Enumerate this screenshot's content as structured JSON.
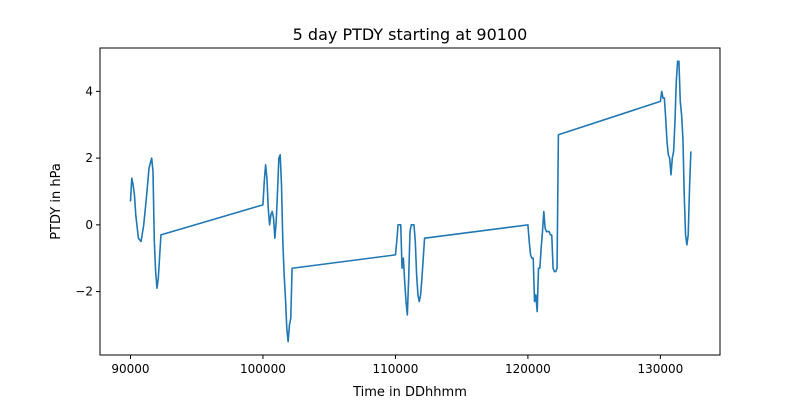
{
  "chart_data": {
    "type": "line",
    "title": "5 day PTDY starting at 90100",
    "xlabel": "Time in DDhhmm",
    "ylabel": "PTDY in hPa",
    "xlim": [
      87700,
      134500
    ],
    "ylim": [
      -3.9,
      5.3
    ],
    "x_ticks": [
      90000,
      100000,
      110000,
      120000,
      130000
    ],
    "y_ticks": [
      -2,
      0,
      2,
      4
    ],
    "x_tick_labels": [
      "90000",
      "100000",
      "110000",
      "120000",
      "130000"
    ],
    "y_tick_labels": [
      "−2",
      "0",
      "2",
      "4"
    ],
    "grid": false,
    "legend": "none",
    "series": [
      {
        "color": "#1f77b4",
        "points": [
          [
            90000,
            0.7
          ],
          [
            90100,
            1.4
          ],
          [
            90200,
            1.2
          ],
          [
            90300,
            0.9
          ],
          [
            90400,
            0.3
          ],
          [
            90600,
            -0.4
          ],
          [
            90800,
            -0.5
          ],
          [
            91000,
            0.0
          ],
          [
            91200,
            0.8
          ],
          [
            91400,
            1.7
          ],
          [
            91600,
            2.0
          ],
          [
            91700,
            1.6
          ],
          [
            91800,
            -0.5
          ],
          [
            91900,
            -1.4
          ],
          [
            92000,
            -1.9
          ],
          [
            92100,
            -1.6
          ],
          [
            92300,
            -0.3
          ],
          [
            100000,
            0.6
          ],
          [
            100100,
            1.3
          ],
          [
            100200,
            1.8
          ],
          [
            100300,
            1.4
          ],
          [
            100400,
            0.5
          ],
          [
            100500,
            0.0
          ],
          [
            100600,
            0.3
          ],
          [
            100700,
            0.4
          ],
          [
            100800,
            0.2
          ],
          [
            100900,
            -0.4
          ],
          [
            101000,
            0.1
          ],
          [
            101100,
            1.0
          ],
          [
            101200,
            2.0
          ],
          [
            101300,
            2.1
          ],
          [
            101400,
            1.2
          ],
          [
            101500,
            -0.5
          ],
          [
            101600,
            -1.5
          ],
          [
            101700,
            -2.2
          ],
          [
            101800,
            -3.1
          ],
          [
            101900,
            -3.5
          ],
          [
            102000,
            -3.0
          ],
          [
            102100,
            -2.8
          ],
          [
            102200,
            -1.3
          ],
          [
            110000,
            -0.9
          ],
          [
            110100,
            -0.5
          ],
          [
            110200,
            0.0
          ],
          [
            110300,
            0.0
          ],
          [
            110400,
            0.0
          ],
          [
            110500,
            -1.3
          ],
          [
            110600,
            -1.0
          ],
          [
            110700,
            -1.7
          ],
          [
            110800,
            -2.3
          ],
          [
            110900,
            -2.7
          ],
          [
            111000,
            -1.6
          ],
          [
            111100,
            -0.2
          ],
          [
            111200,
            0.0
          ],
          [
            111300,
            0.0
          ],
          [
            111400,
            0.0
          ],
          [
            111500,
            -0.5
          ],
          [
            111600,
            -1.5
          ],
          [
            111700,
            -2.1
          ],
          [
            111800,
            -2.3
          ],
          [
            111900,
            -2.1
          ],
          [
            112000,
            -1.6
          ],
          [
            112200,
            -0.4
          ],
          [
            120000,
            0.0
          ],
          [
            120100,
            -0.5
          ],
          [
            120200,
            -0.9
          ],
          [
            120300,
            -1.0
          ],
          [
            120400,
            -1.0
          ],
          [
            120500,
            -2.3
          ],
          [
            120600,
            -2.1
          ],
          [
            120700,
            -2.6
          ],
          [
            120800,
            -1.3
          ],
          [
            120900,
            -1.3
          ],
          [
            121000,
            -0.7
          ],
          [
            121100,
            -0.2
          ],
          [
            121200,
            0.4
          ],
          [
            121300,
            -0.1
          ],
          [
            121400,
            -0.2
          ],
          [
            121500,
            -0.2
          ],
          [
            121600,
            -0.2
          ],
          [
            121700,
            -0.3
          ],
          [
            121800,
            -0.3
          ],
          [
            121900,
            -1.3
          ],
          [
            122000,
            -1.4
          ],
          [
            122100,
            -1.4
          ],
          [
            122200,
            -1.3
          ],
          [
            122300,
            2.7
          ],
          [
            130000,
            3.7
          ],
          [
            130100,
            4.0
          ],
          [
            130200,
            3.8
          ],
          [
            130300,
            3.8
          ],
          [
            130400,
            3.2
          ],
          [
            130500,
            2.5
          ],
          [
            130600,
            2.1
          ],
          [
            130700,
            2.0
          ],
          [
            130800,
            1.5
          ],
          [
            130900,
            2.0
          ],
          [
            131000,
            2.2
          ],
          [
            131100,
            3.1
          ],
          [
            131200,
            4.3
          ],
          [
            131300,
            4.9
          ],
          [
            131400,
            4.9
          ],
          [
            131500,
            3.7
          ],
          [
            131600,
            3.3
          ],
          [
            131700,
            2.6
          ],
          [
            131800,
            0.9
          ],
          [
            131900,
            -0.3
          ],
          [
            132000,
            -0.6
          ],
          [
            132100,
            -0.3
          ],
          [
            132200,
            1.1
          ],
          [
            132300,
            2.2
          ]
        ]
      }
    ]
  }
}
